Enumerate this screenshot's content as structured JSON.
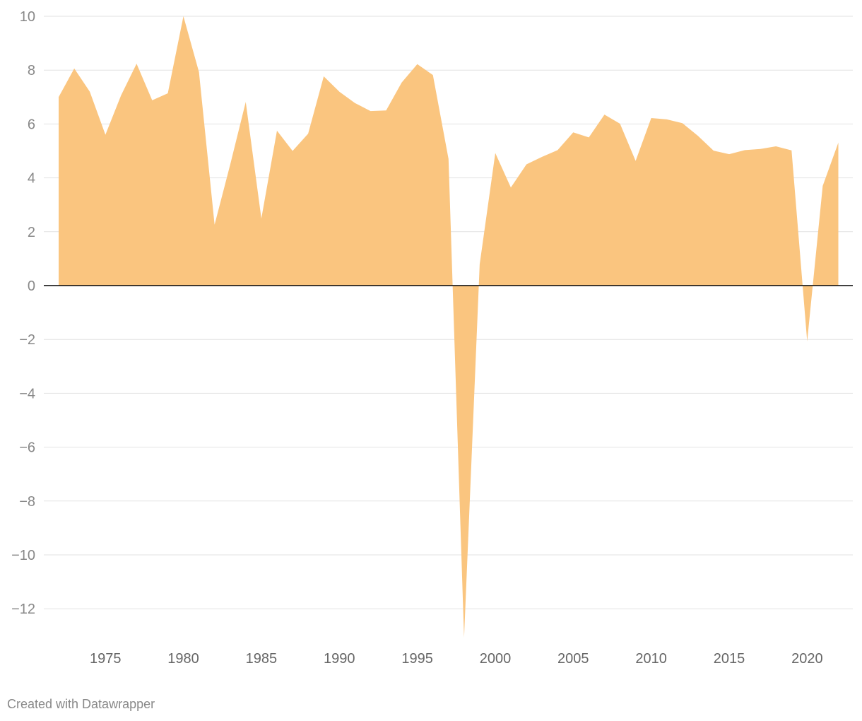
{
  "chart_data": {
    "type": "area",
    "title": "",
    "xlabel": "",
    "ylabel": "",
    "x": [
      1972,
      1973,
      1974,
      1975,
      1976,
      1977,
      1978,
      1979,
      1980,
      1981,
      1982,
      1983,
      1984,
      1985,
      1986,
      1987,
      1988,
      1989,
      1990,
      1991,
      1992,
      1993,
      1994,
      1995,
      1996,
      1997,
      1998,
      1999,
      2000,
      2001,
      2002,
      2003,
      2004,
      2005,
      2006,
      2007,
      2008,
      2009,
      2010,
      2011,
      2012,
      2013,
      2014,
      2015,
      2016,
      2017,
      2018,
      2019,
      2020,
      2021,
      2022
    ],
    "values": [
      7.0,
      8.06,
      7.2,
      5.6,
      7.06,
      8.24,
      6.88,
      7.14,
      10.0,
      7.93,
      2.26,
      4.49,
      6.82,
      2.49,
      5.75,
      5.0,
      5.64,
      7.77,
      7.2,
      6.78,
      6.48,
      6.5,
      7.54,
      8.22,
      7.82,
      4.7,
      -13.07,
      0.79,
      4.92,
      3.64,
      4.5,
      4.78,
      5.03,
      5.69,
      5.5,
      6.35,
      6.01,
      4.63,
      6.22,
      6.17,
      6.03,
      5.56,
      5.01,
      4.88,
      5.03,
      5.07,
      5.17,
      5.02,
      -2.07,
      3.7,
      5.31
    ],
    "ylim": [
      -13.2,
      10
    ],
    "yticks": [
      10,
      8,
      6,
      4,
      2,
      0,
      -2,
      -4,
      -6,
      -8,
      -10,
      -12
    ],
    "ytick_labels": [
      "10",
      "8",
      "6",
      "4",
      "2",
      "0",
      "−2",
      "−4",
      "−6",
      "−8",
      "−10",
      "−12"
    ],
    "xticks": [
      1975,
      1980,
      1985,
      1990,
      1995,
      2000,
      2005,
      2010,
      2015,
      2020
    ],
    "xtick_labels": [
      "1975",
      "1980",
      "1985",
      "1990",
      "1995",
      "2000",
      "2005",
      "2010",
      "2015",
      "2020"
    ],
    "grid": true,
    "fill_color": "#fac57f",
    "grid_color": "#e2e2e2",
    "baseline_color": "#000000"
  },
  "credit": "Created with Datawrapper"
}
